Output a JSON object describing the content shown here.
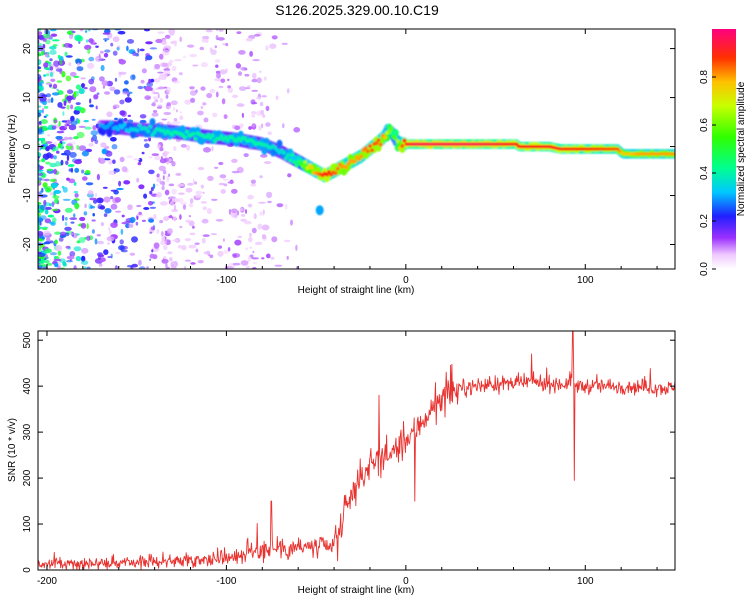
{
  "figure": {
    "title": "S126.2025.329.00.10.C19"
  },
  "chart_data": [
    {
      "type": "heatmap",
      "title": "S126.2025.329.00.10.C19",
      "xlabel": "Height of straight line (km)",
      "ylabel": "Frequency (Hz)",
      "xlim": [
        -205,
        150
      ],
      "ylim": [
        -25,
        24
      ],
      "x_ticks": [
        -200,
        -100,
        0,
        100
      ],
      "x_tick_labels": [
        "-200",
        "-100",
        "0",
        "100"
      ],
      "y_ticks": [
        -20,
        -10,
        0,
        10,
        20
      ],
      "y_tick_labels": [
        "-20",
        "-10",
        "0",
        "10",
        "20"
      ],
      "trace": {
        "x": [
          -165,
          -150,
          -130,
          -110,
          -95,
          -80,
          -70,
          -60,
          -55,
          -50,
          -45,
          -40,
          -35,
          -30,
          -25,
          -20,
          -15,
          -12,
          -10,
          -7,
          -5,
          -2,
          0,
          5,
          20,
          40,
          62,
          63,
          80,
          86,
          100,
          118,
          121,
          130,
          150
        ],
        "freq": [
          4,
          3.5,
          3,
          2,
          1.5,
          0.5,
          -1,
          -3,
          -4,
          -5,
          -6,
          -5,
          -4,
          -3,
          -2,
          -0.5,
          1,
          2,
          3.5,
          2.5,
          1,
          0.5,
          0.5,
          0.5,
          0.5,
          0.5,
          0.5,
          0,
          0,
          -0.5,
          -0.5,
          -0.5,
          -1.5,
          -1.5,
          -1.5
        ],
        "amplitude": [
          0.3,
          0.35,
          0.4,
          0.4,
          0.4,
          0.4,
          0.35,
          0.45,
          0.7,
          0.8,
          0.9,
          0.85,
          0.8,
          0.8,
          0.8,
          0.85,
          0.85,
          0.8,
          0.65,
          0.55,
          0.6,
          0.85,
          0.9,
          0.95,
          0.95,
          0.95,
          0.9,
          0.9,
          0.9,
          0.9,
          0.88,
          0.85,
          0.75,
          0.8,
          0.8
        ]
      },
      "outlier": {
        "x": -48,
        "freq": -13,
        "amplitude": 0.3
      },
      "colorbar": {
        "label": "Normalized spectral amplitude",
        "range": [
          0,
          1
        ],
        "ticks": [
          0.0,
          0.2,
          0.4,
          0.6,
          0.8
        ],
        "tick_labels": [
          "0.0",
          "0.2",
          "0.4",
          "0.6",
          "0.8"
        ]
      }
    },
    {
      "type": "line",
      "xlabel": "Height of straight line (km)",
      "ylabel": "SNR (10 * v/v)",
      "xlim": [
        -205,
        150
      ],
      "ylim": [
        0,
        520
      ],
      "x_ticks": [
        -200,
        -100,
        0,
        100
      ],
      "x_tick_labels": [
        "-200",
        "-100",
        "0",
        "100"
      ],
      "y_ticks": [
        0,
        100,
        200,
        300,
        400,
        500
      ],
      "y_tick_labels": [
        "0",
        "100",
        "200",
        "300",
        "400",
        "500"
      ],
      "color": "#e8322f",
      "series": [
        {
          "name": "SNR",
          "x": [
            -205,
            -180,
            -160,
            -140,
            -120,
            -100,
            -90,
            -80,
            -70,
            -60,
            -50,
            -40,
            -35,
            -30,
            -25,
            -20,
            -15,
            -10,
            -5,
            0,
            5,
            10,
            15,
            20,
            25,
            30,
            40,
            50,
            60,
            70,
            80,
            90,
            93,
            95,
            100,
            120,
            150
          ],
          "snr": [
            12,
            14,
            15,
            18,
            22,
            28,
            35,
            45,
            50,
            50,
            48,
            50,
            110,
            170,
            200,
            230,
            240,
            250,
            260,
            280,
            300,
            330,
            350,
            370,
            385,
            395,
            400,
            405,
            405,
            410,
            405,
            405,
            420,
            400,
            400,
            400,
            395
          ]
        }
      ],
      "spikes": [
        {
          "x": -75,
          "snr": 150
        },
        {
          "x": -38,
          "snr": 20
        },
        {
          "x": -15,
          "snr": 380
        },
        {
          "x": 5,
          "snr": 150
        },
        {
          "x": 70,
          "snr": 470
        },
        {
          "x": 93,
          "snr": 520
        },
        {
          "x": 94,
          "snr": 195
        }
      ]
    }
  ]
}
